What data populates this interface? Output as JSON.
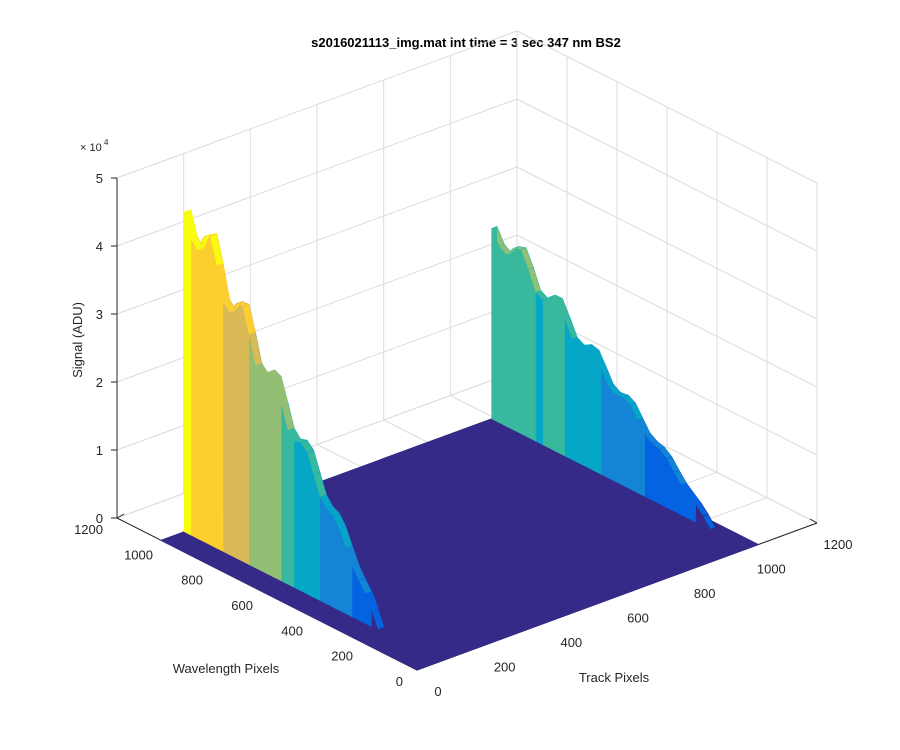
{
  "chart_data": {
    "type": "surface",
    "title": "s2016021113_img.mat int time = 3 sec  347 nm BS2",
    "xlabel": "Track Pixels",
    "ylabel": "Wavelength Pixels",
    "zlabel": "Signal (ADU)",
    "z_exponent_label": "× 10",
    "z_exponent": "4",
    "xlim": [
      0,
      1200
    ],
    "ylim": [
      0,
      1200
    ],
    "zlim": [
      0,
      50000
    ],
    "x_ticks": [
      "0",
      "200",
      "400",
      "600",
      "800",
      "1000",
      "1200"
    ],
    "y_ticks": [
      "0",
      "200",
      "400",
      "600",
      "800",
      "1000",
      "1200"
    ],
    "z_ticks": [
      "0",
      "1",
      "2",
      "3",
      "4",
      "5"
    ],
    "x_tick_values": [
      0,
      200,
      400,
      600,
      800,
      1000,
      1200
    ],
    "y_tick_values": [
      0,
      200,
      400,
      600,
      800,
      1000,
      1200
    ],
    "z_tick_values": [
      0,
      10000,
      20000,
      30000,
      40000,
      50000
    ],
    "grid": true,
    "surface_extent": {
      "x": [
        0,
        1024
      ],
      "y": [
        0,
        1024
      ]
    },
    "baseline": 0,
    "peaks": [
      {
        "track_center": 80,
        "wavelength_range": [
          250,
          1024
        ],
        "half_width": 10,
        "max_signal": 47000
      },
      {
        "track_center": 1000,
        "wavelength_range": [
          150,
          1024
        ],
        "half_width": 8,
        "max_signal": 28000
      }
    ],
    "colormap": [
      "#352a87",
      "#0363e1",
      "#1485d4",
      "#06a7c6",
      "#38b99e",
      "#92bf73",
      "#d9ba56",
      "#fcce2e",
      "#f9fb0e"
    ]
  }
}
